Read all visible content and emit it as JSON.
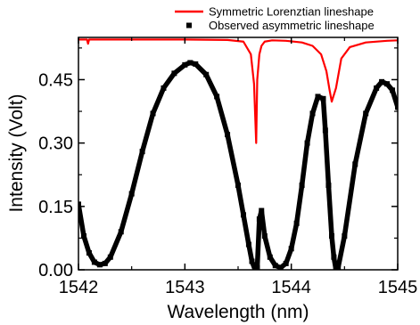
{
  "chart_data": {
    "type": "line",
    "title": "",
    "xlabel": "Wavelength (nm)",
    "ylabel": "Intensity (Volt)",
    "xlim": [
      1542.0,
      1545.0
    ],
    "ylim": [
      0.0,
      0.55
    ],
    "xticks": [
      1542,
      1543,
      1544,
      1545
    ],
    "xtick_labels": [
      "1542",
      "1543",
      "1544",
      "1545"
    ],
    "yticks": [
      0.0,
      0.15,
      0.3,
      0.45
    ],
    "ytick_labels": [
      "0.00",
      "0.15",
      "0.30",
      "0.45"
    ],
    "grid": false,
    "legend_position": "top-right, above plot",
    "series": [
      {
        "name": "Symmetric Lorenztian lineshape",
        "color": "#ff0000",
        "style": "line",
        "x": [
          1542.0,
          1542.08,
          1542.09,
          1542.1,
          1542.2,
          1542.5,
          1543.0,
          1543.4,
          1543.55,
          1543.62,
          1543.65,
          1543.67,
          1543.68,
          1543.7,
          1543.72,
          1543.75,
          1543.82,
          1543.95,
          1544.1,
          1544.2,
          1544.28,
          1544.33,
          1544.36,
          1544.38,
          1544.42,
          1544.47,
          1544.55,
          1544.7,
          1544.9,
          1545.0
        ],
        "y": [
          0.545,
          0.545,
          0.535,
          0.545,
          0.545,
          0.545,
          0.545,
          0.544,
          0.54,
          0.51,
          0.44,
          0.3,
          0.45,
          0.51,
          0.53,
          0.54,
          0.543,
          0.542,
          0.538,
          0.53,
          0.51,
          0.47,
          0.425,
          0.398,
          0.43,
          0.5,
          0.527,
          0.538,
          0.542,
          0.543
        ]
      },
      {
        "name": "Observed asymmetric lineshape",
        "color": "#000000",
        "style": "markers",
        "x": [
          1542.0,
          1542.05,
          1542.1,
          1542.15,
          1542.2,
          1542.25,
          1542.3,
          1542.4,
          1542.5,
          1542.6,
          1542.7,
          1542.8,
          1542.9,
          1543.0,
          1543.05,
          1543.1,
          1543.2,
          1543.3,
          1543.4,
          1543.5,
          1543.55,
          1543.6,
          1543.63,
          1543.66,
          1543.68,
          1543.7,
          1543.72,
          1543.75,
          1543.8,
          1543.85,
          1543.9,
          1543.95,
          1544.0,
          1544.05,
          1544.1,
          1544.15,
          1544.2,
          1544.25,
          1544.3,
          1544.32,
          1544.35,
          1544.38,
          1544.4,
          1544.42,
          1544.44,
          1544.5,
          1544.6,
          1544.7,
          1544.8,
          1544.85,
          1544.9,
          1544.95,
          1545.0
        ],
        "y": [
          0.155,
          0.08,
          0.04,
          0.018,
          0.012,
          0.015,
          0.03,
          0.09,
          0.18,
          0.28,
          0.37,
          0.43,
          0.465,
          0.485,
          0.49,
          0.487,
          0.462,
          0.41,
          0.32,
          0.2,
          0.13,
          0.06,
          0.02,
          0.0,
          0.005,
          0.12,
          0.14,
          0.08,
          0.03,
          0.01,
          0.005,
          0.015,
          0.05,
          0.11,
          0.2,
          0.3,
          0.37,
          0.41,
          0.405,
          0.33,
          0.2,
          0.08,
          0.03,
          0.0,
          0.005,
          0.08,
          0.25,
          0.37,
          0.43,
          0.445,
          0.44,
          0.425,
          0.385
        ]
      }
    ]
  }
}
